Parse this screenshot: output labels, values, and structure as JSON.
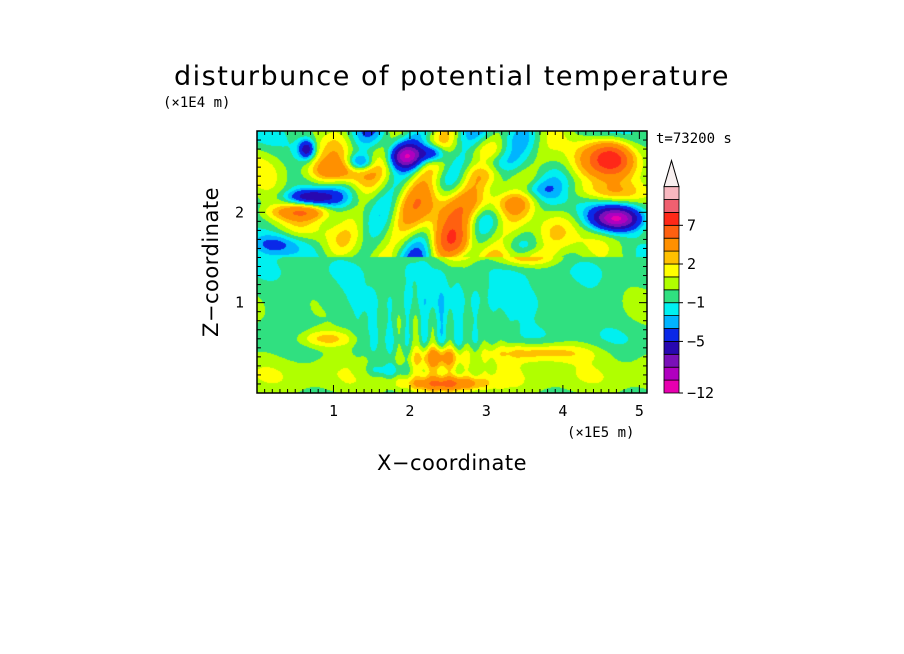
{
  "chart_data": {
    "type": "heatmap",
    "title": "disturbunce of potential temperature",
    "xlabel": "X−coordinate",
    "ylabel": "Z−coordinate",
    "x_scale_label": "(×1E5 m)",
    "y_scale_label": "(×1E4 m)",
    "time_label": "t=73200 s",
    "xlim": [
      0,
      5.1
    ],
    "ylim": [
      0,
      2.9
    ],
    "x_ticks": [
      {
        "value": 1,
        "label": "1"
      },
      {
        "value": 2,
        "label": "2"
      },
      {
        "value": 3,
        "label": "3"
      },
      {
        "value": 4,
        "label": "4"
      },
      {
        "value": 5,
        "label": "5"
      }
    ],
    "y_ticks": [
      {
        "value": 1,
        "label": "1"
      },
      {
        "value": 2,
        "label": "2"
      }
    ],
    "colorbar": {
      "levels": [
        -12,
        -11,
        -9,
        -7,
        -5,
        -3,
        -2,
        -1,
        0,
        1,
        2,
        3,
        5,
        7,
        9,
        11
      ],
      "colors": [
        "#e800b0",
        "#b000c0",
        "#7a10b8",
        "#2808b0",
        "#0a28e8",
        "#00b4ff",
        "#00f0f0",
        "#30e080",
        "#b0ff00",
        "#ffff00",
        "#ffc000",
        "#ff9000",
        "#ff6010",
        "#ff2818",
        "#f06070",
        "#f8b8c0"
      ],
      "extend_top_color": "#f8f0f0",
      "labels": [
        {
          "value": -12,
          "label": "−12"
        },
        {
          "value": -5,
          "label": "−5"
        },
        {
          "value": -1,
          "label": "−1"
        },
        {
          "value": 2,
          "label": "2"
        },
        {
          "value": 7,
          "label": "7"
        }
      ]
    },
    "features": [
      {
        "x": 4.65,
        "z": 2.6,
        "sx": 0.28,
        "sz": 0.2,
        "amp": 8
      },
      {
        "x": 4.7,
        "z": 1.93,
        "sx": 0.3,
        "sz": 0.13,
        "amp": -11
      },
      {
        "x": 4.6,
        "z": 2.22,
        "sx": 0.5,
        "sz": 0.12,
        "amp": 3
      },
      {
        "x": 1.95,
        "z": 2.62,
        "sx": 0.2,
        "sz": 0.13,
        "amp": -9
      },
      {
        "x": 2.3,
        "z": 2.65,
        "sx": 0.18,
        "sz": 0.1,
        "amp": -6
      },
      {
        "x": 1.35,
        "z": 2.55,
        "sx": 0.18,
        "sz": 0.1,
        "amp": -5
      },
      {
        "x": 0.65,
        "z": 2.7,
        "sx": 0.1,
        "sz": 0.1,
        "amp": -6
      },
      {
        "x": 0.7,
        "z": 2.17,
        "sx": 0.3,
        "sz": 0.08,
        "amp": -6
      },
      {
        "x": 0.3,
        "z": 1.65,
        "sx": 0.4,
        "sz": 0.12,
        "amp": -3
      },
      {
        "x": 1.0,
        "z": 2.45,
        "sx": 0.4,
        "sz": 0.14,
        "amp": 4
      },
      {
        "x": 0.6,
        "z": 2.0,
        "sx": 0.45,
        "sz": 0.09,
        "amp": 4
      },
      {
        "x": 2.45,
        "z": 2.1,
        "sx": 0.5,
        "sz": 0.25,
        "amp": 5
      },
      {
        "x": 2.6,
        "z": 1.65,
        "sx": 0.25,
        "sz": 0.2,
        "amp": 3
      },
      {
        "x": 3.15,
        "z": 2.1,
        "sx": 0.4,
        "sz": 0.15,
        "amp": 3
      },
      {
        "x": 3.05,
        "z": 2.55,
        "sx": 0.3,
        "sz": 0.12,
        "amp": -3
      },
      {
        "x": 3.6,
        "z": 2.25,
        "sx": 0.3,
        "sz": 0.1,
        "amp": -2
      },
      {
        "x": 3.5,
        "z": 1.5,
        "sx": 0.4,
        "sz": 0.1,
        "amp": 3
      },
      {
        "x": 2.6,
        "z": 1.0,
        "sx": 2.3,
        "sz": 0.22,
        "amp": -2.2
      },
      {
        "x": 0.9,
        "z": 0.6,
        "sx": 0.4,
        "sz": 0.1,
        "amp": 3
      },
      {
        "x": 3.7,
        "z": 0.45,
        "sx": 0.7,
        "sz": 0.1,
        "amp": 3
      },
      {
        "x": 2.4,
        "z": 0.4,
        "sx": 0.3,
        "sz": 0.12,
        "amp": 4
      },
      {
        "x": 2.5,
        "z": 0.1,
        "sx": 0.5,
        "sz": 0.08,
        "amp": 5
      },
      {
        "x": 1.7,
        "z": 0.25,
        "sx": 0.3,
        "sz": 0.08,
        "amp": -2
      }
    ]
  }
}
